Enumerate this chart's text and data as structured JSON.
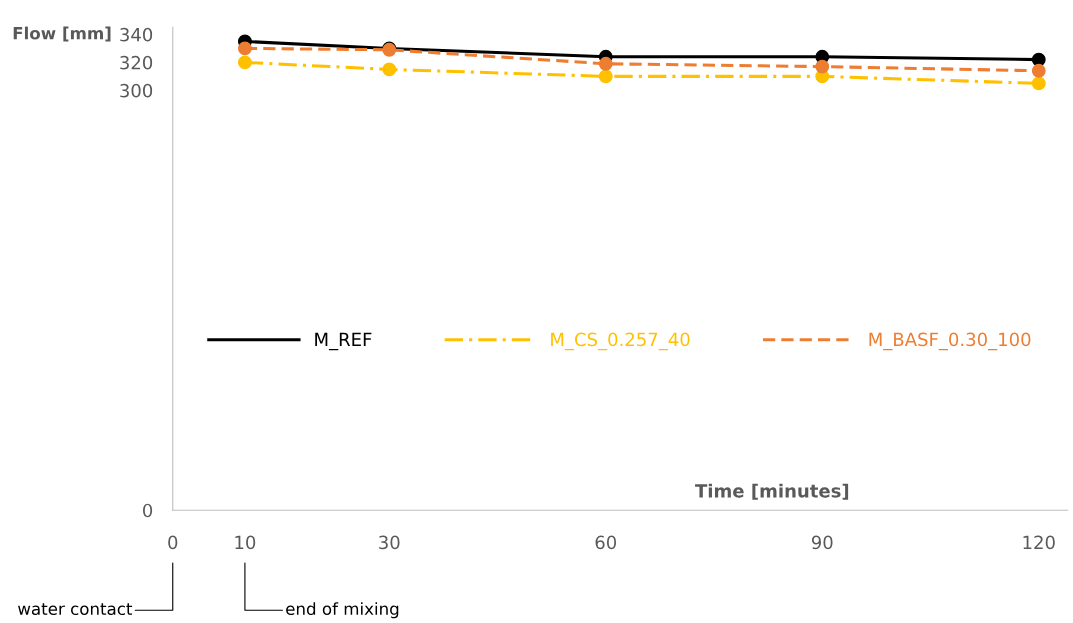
{
  "chart_data": {
    "type": "line",
    "xlabel": "Time [minutes]",
    "ylabel": "Flow [mm]",
    "x": [
      10,
      30,
      60,
      90,
      120
    ],
    "series": [
      {
        "name": "M_REF",
        "color": "#000000",
        "line_style": "solid",
        "values": [
          335,
          330,
          324,
          324,
          322
        ]
      },
      {
        "name": "M_CS_0.257_40",
        "color": "#ffc000",
        "line_style": "dashdot",
        "values": [
          320,
          315,
          310,
          310,
          305
        ]
      },
      {
        "name": "M_BASF_0.30_100",
        "color": "#ed7d31",
        "line_style": "dashed",
        "values": [
          330,
          329,
          319,
          317,
          314
        ]
      }
    ],
    "xlim": [
      0,
      124
    ],
    "xticks": [
      0,
      10,
      30,
      60,
      90,
      120
    ],
    "ylim": [
      0,
      345
    ],
    "yticks": [
      0,
      300,
      320,
      340
    ],
    "marker": "circle",
    "grid": false,
    "legend": "center",
    "annotations": [
      "water contact",
      "end of mixing"
    ]
  }
}
